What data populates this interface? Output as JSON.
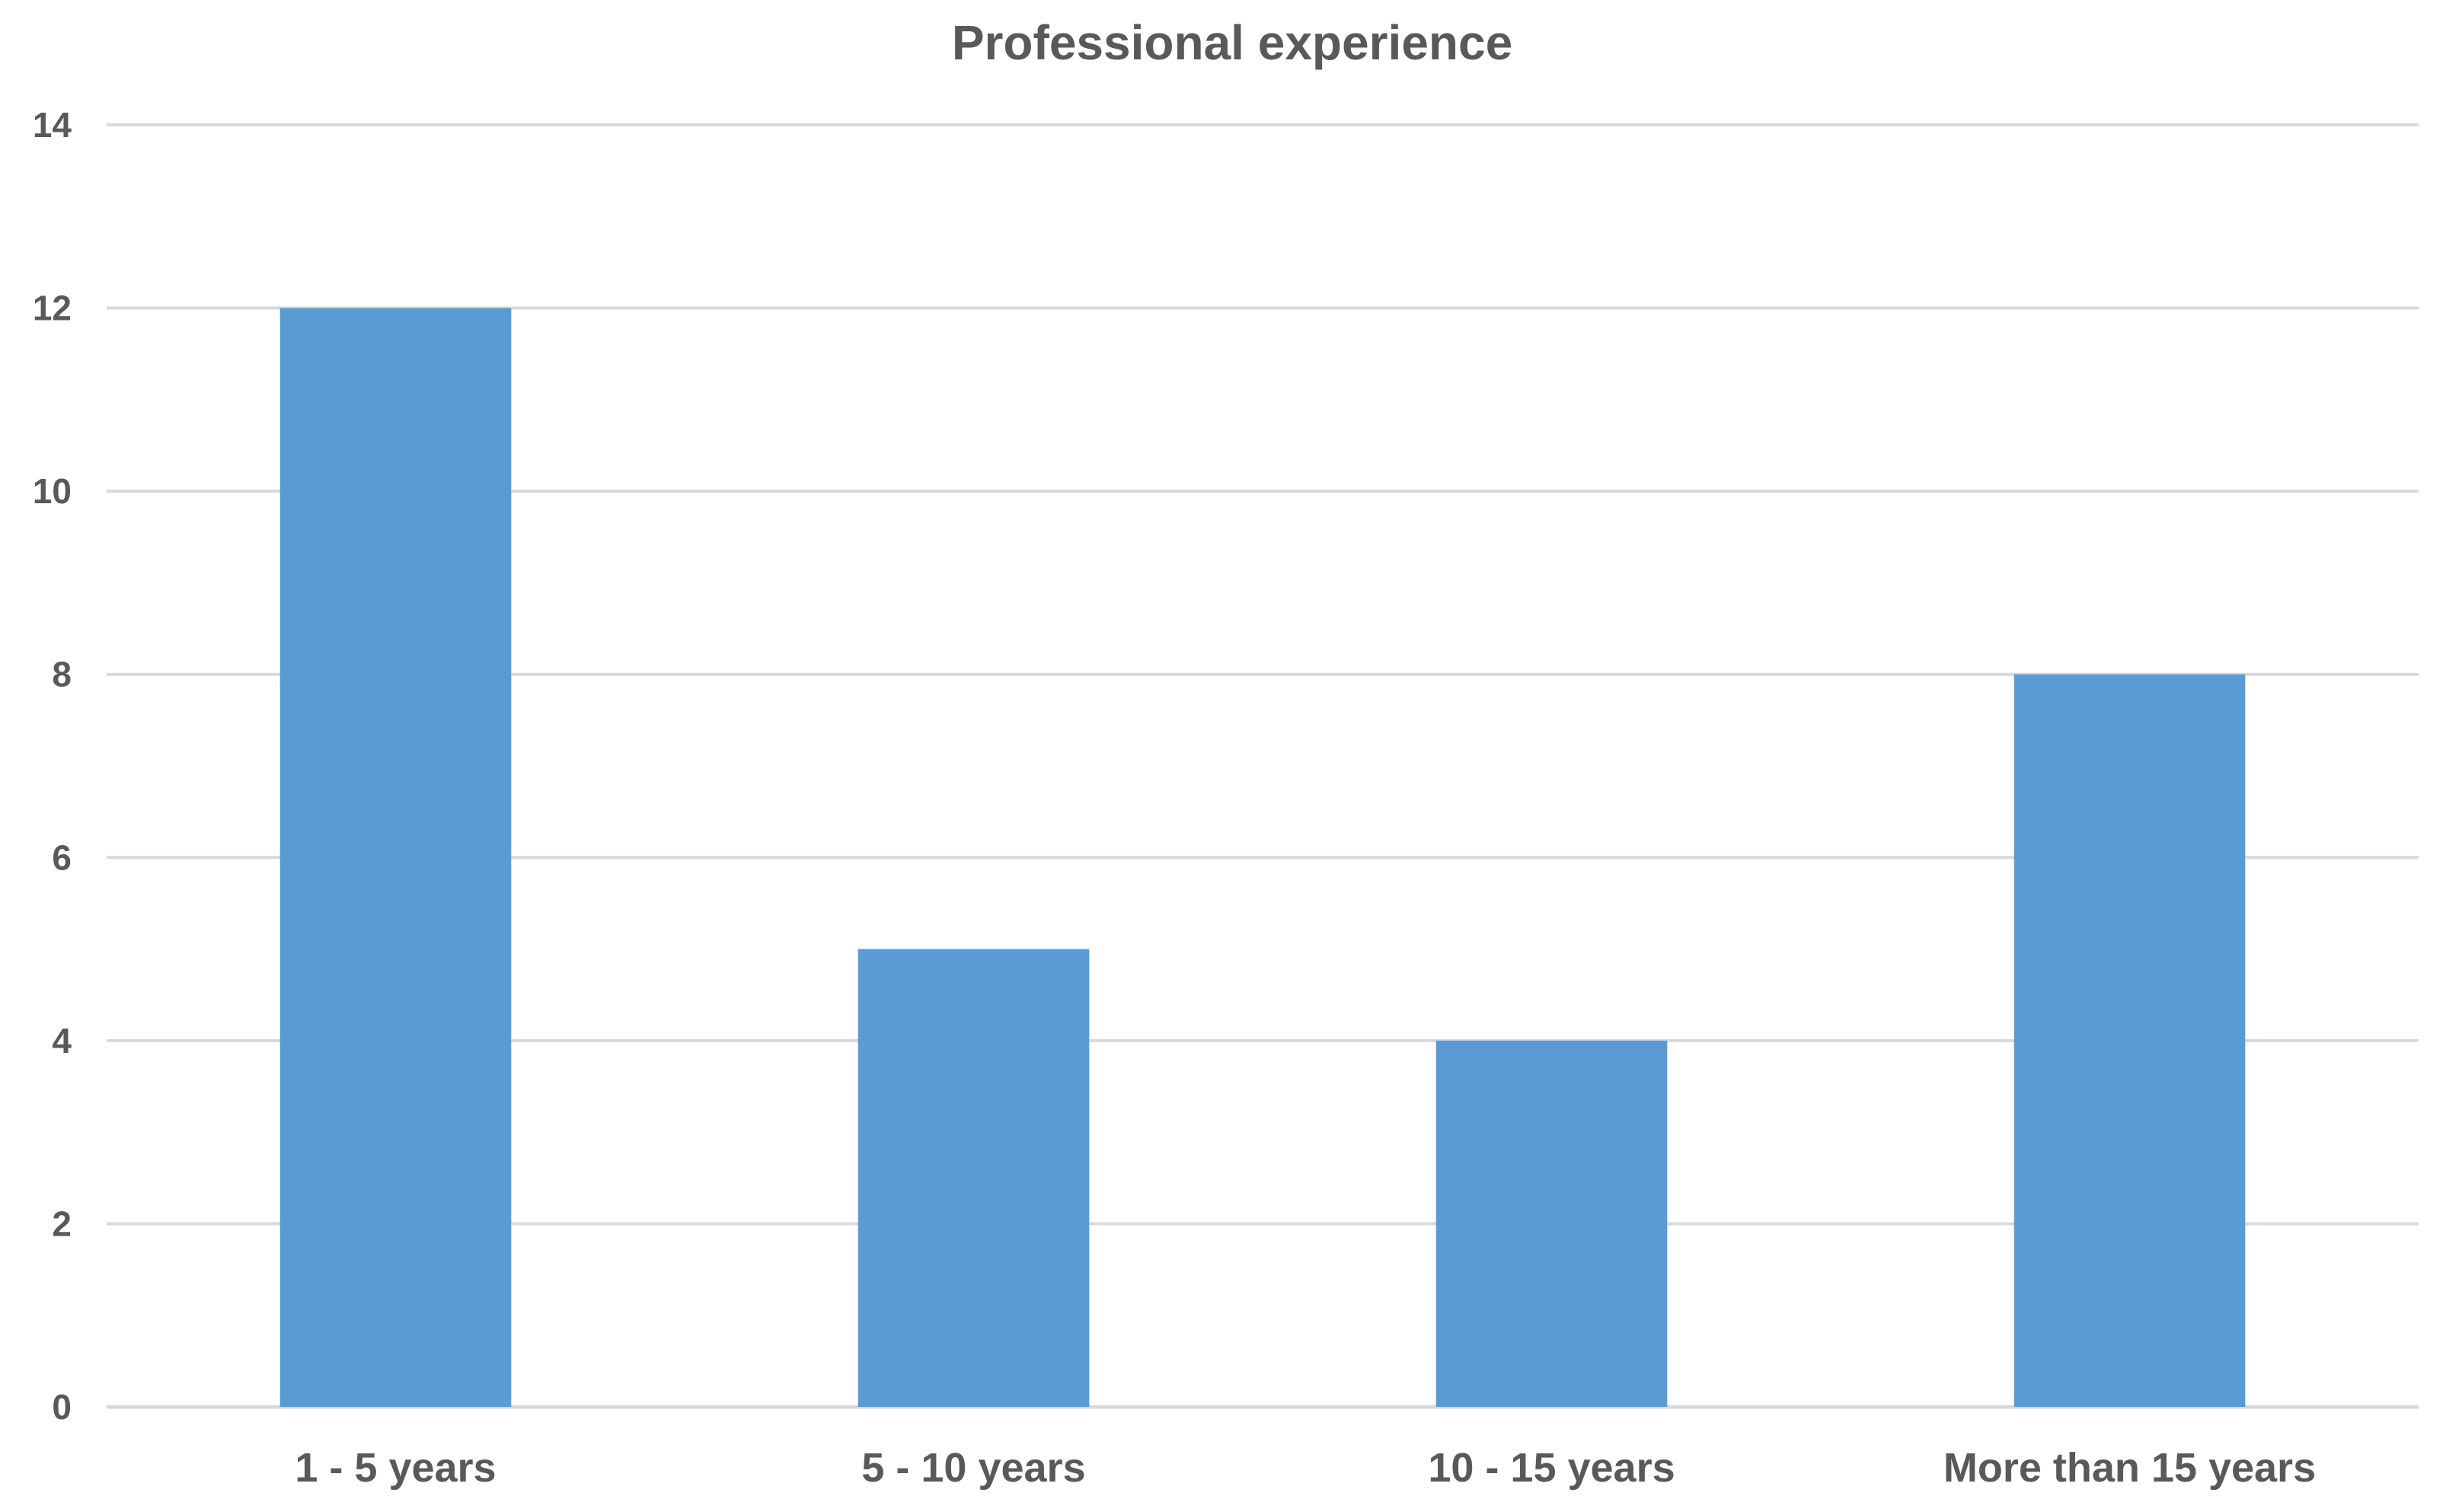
{
  "chart_data": {
    "type": "bar",
    "title": "Professional experience",
    "xlabel": "",
    "ylabel": "",
    "categories": [
      "1 - 5 years",
      "5 - 10 years",
      "10 - 15 years",
      "More than 15 years"
    ],
    "values": [
      12,
      5,
      4,
      8
    ],
    "ylim": [
      0,
      14
    ],
    "yticks": [
      0,
      2,
      4,
      6,
      8,
      10,
      12,
      14
    ],
    "grid": true,
    "legend": "none",
    "bar_color": "#5B9BD5",
    "grid_color": "#D9D9D9",
    "text_color": "#595959"
  }
}
